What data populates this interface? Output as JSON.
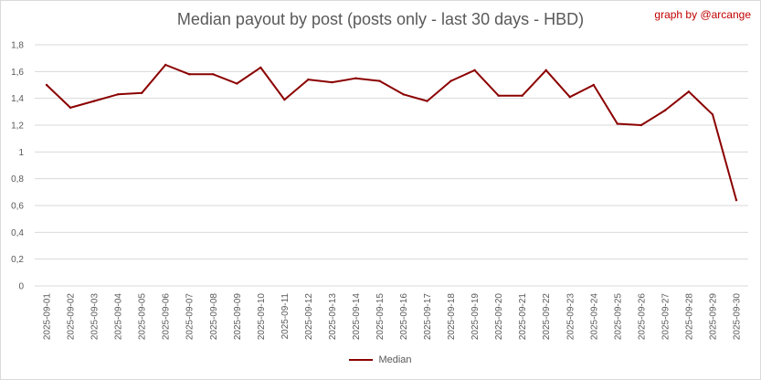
{
  "chart_data": {
    "type": "line",
    "title": "Median payout by post (posts only - last 30 days - HBD)",
    "credit": "graph by @arcange",
    "xlabel": "",
    "ylabel": "",
    "ylim": [
      0,
      1.8
    ],
    "yticks": [
      "0",
      "0,2",
      "0,4",
      "0,6",
      "0,8",
      "1",
      "1,2",
      "1,4",
      "1,6",
      "1,8"
    ],
    "grid": true,
    "legend_position": "bottom",
    "categories": [
      "2025-09-01",
      "2025-09-02",
      "2025-09-03",
      "2025-09-04",
      "2025-09-05",
      "2025-09-06",
      "2025-09-07",
      "2025-09-08",
      "2025-09-09",
      "2025-09-10",
      "2025-09-11",
      "2025-09-12",
      "2025-09-13",
      "2025-09-14",
      "2025-09-15",
      "2025-09-16",
      "2025-09-17",
      "2025-09-18",
      "2025-09-19",
      "2025-09-20",
      "2025-09-21",
      "2025-09-22",
      "2025-09-23",
      "2025-09-24",
      "2025-09-25",
      "2025-09-26",
      "2025-09-27",
      "2025-09-28",
      "2025-09-29",
      "2025-09-30"
    ],
    "series": [
      {
        "name": "Median",
        "color": "#8b0000",
        "values": [
          1.5,
          1.33,
          1.38,
          1.43,
          1.44,
          1.65,
          1.58,
          1.58,
          1.51,
          1.63,
          1.39,
          1.54,
          1.52,
          1.55,
          1.53,
          1.43,
          1.38,
          1.53,
          1.61,
          1.42,
          1.42,
          1.61,
          1.41,
          1.5,
          1.21,
          1.2,
          1.31,
          1.45,
          1.28,
          0.64
        ]
      }
    ]
  }
}
